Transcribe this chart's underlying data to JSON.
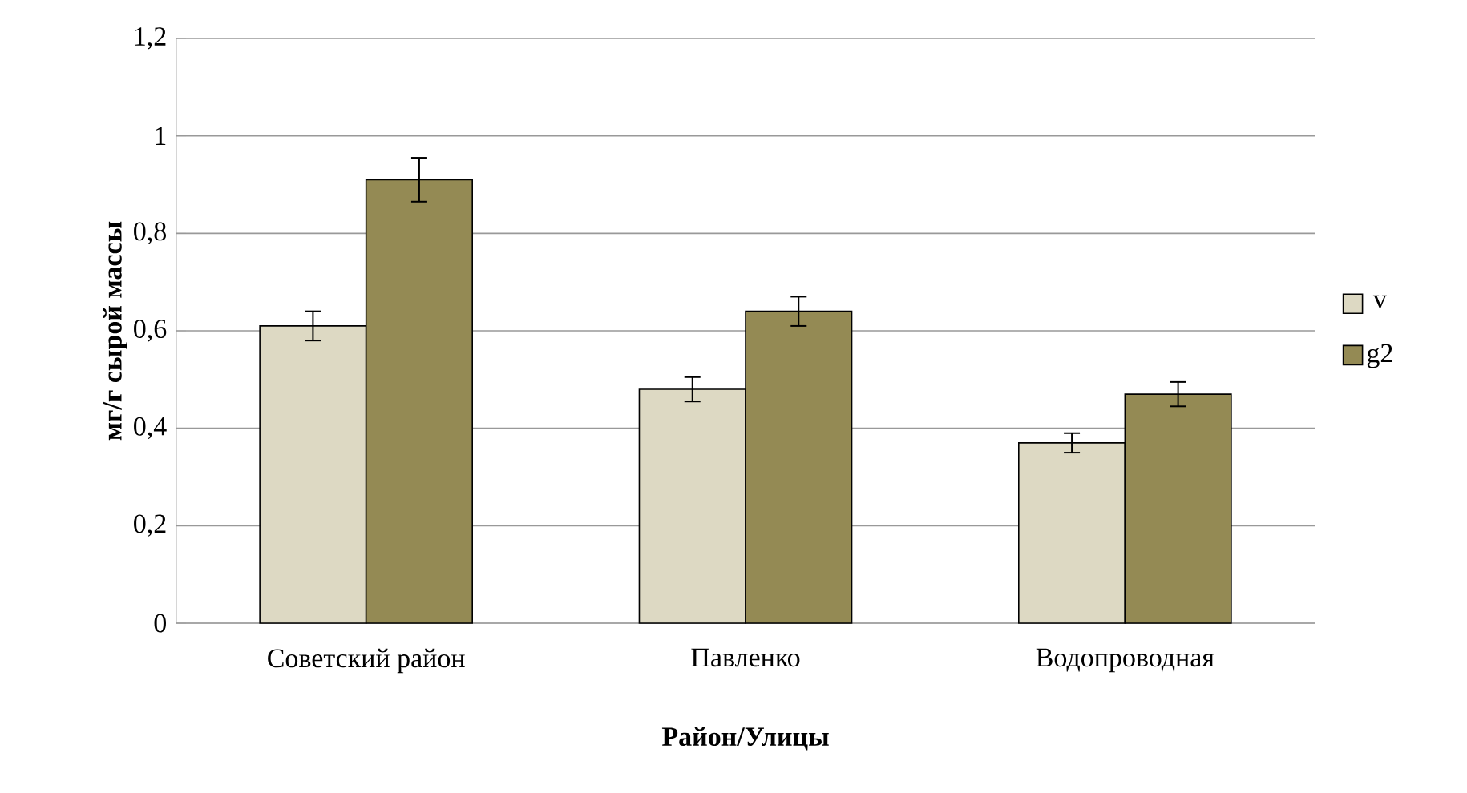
{
  "chart_data": {
    "type": "bar",
    "xlabel": "Район/Улицы",
    "ylabel": "мг/г сырой массы",
    "categories": [
      "Советский район",
      "Павленко",
      "Водопроводная"
    ],
    "series": [
      {
        "name": "v",
        "color": "#ddd9c3",
        "values": [
          0.61,
          0.48,
          0.37
        ],
        "errors": [
          0.03,
          0.025,
          0.02
        ]
      },
      {
        "name": "g2",
        "color": "#948a54",
        "values": [
          0.91,
          0.64,
          0.47
        ],
        "errors": [
          0.045,
          0.03,
          0.025
        ]
      }
    ],
    "ylim": [
      0,
      1.2
    ],
    "yticks": [
      0,
      {
        "value": 0.2,
        "label": "0,2"
      },
      {
        "value": 0.4,
        "label": "0,4"
      },
      {
        "value": 0.6,
        "label": "0,6"
      },
      {
        "value": 0.8,
        "label": "0,8"
      },
      1,
      {
        "value": 1.2,
        "label": "1,2"
      }
    ],
    "grid": "y",
    "legend": "right"
  }
}
